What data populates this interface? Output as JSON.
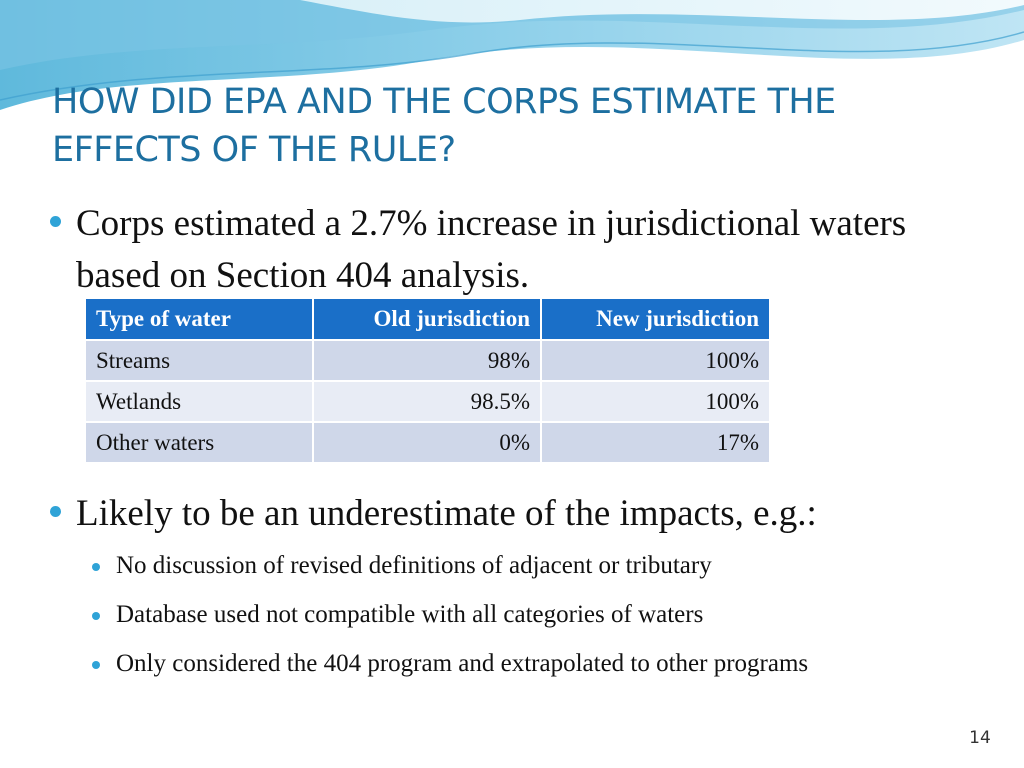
{
  "slide": {
    "title": "HOW DID EPA AND THE CORPS ESTIMATE THE EFFECTS OF THE RULE?",
    "bullet1": "Corps estimated a 2.7% increase in jurisdictional waters based on Section 404 analysis.",
    "table": {
      "headers": [
        "Type of water",
        "Old jurisdiction",
        "New jurisdiction"
      ],
      "rows": [
        [
          "Streams",
          "98%",
          "100%"
        ],
        [
          "Wetlands",
          "98.5%",
          "100%"
        ],
        [
          "Other waters",
          "0%",
          "17%"
        ]
      ]
    },
    "bullet2": "Likely to be an underestimate of the impacts, e.g.:",
    "subbullets": [
      "No discussion of revised definitions of adjacent or tributary",
      "Database used not compatible with all categories of waters",
      "Only considered the 404 program and extrapolated to other programs"
    ],
    "page_number": "14"
  },
  "colors": {
    "title": "#1d6fa0",
    "bullet": "#2fa3d7",
    "table_header": "#1a6fc8",
    "row_dark": "#cfd7e9",
    "row_light": "#e8ecf5"
  }
}
